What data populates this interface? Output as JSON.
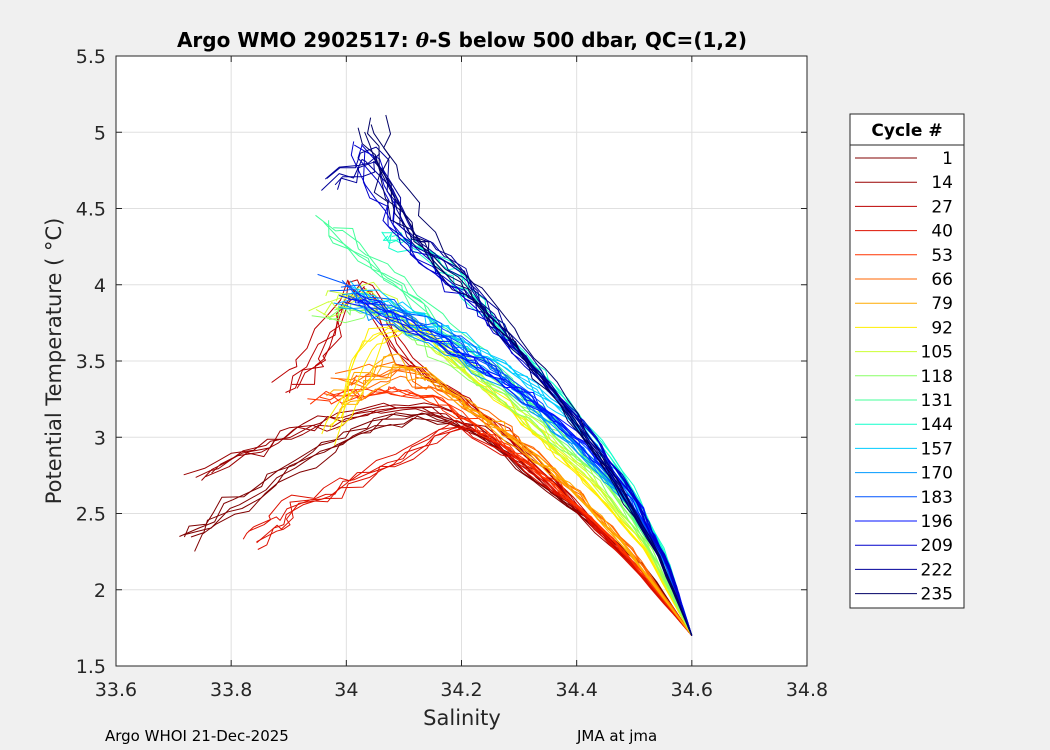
{
  "chart_data": {
    "type": "line",
    "title": "Argo WMO 2902517: θ-S below 500 dbar,  QC=(1,2)",
    "title_parts": {
      "prefix": "Argo WMO 2902517: ",
      "symbol": "θ",
      "suffix": "-S below 500 dbar,  QC=(1,2)"
    },
    "xlabel": "Salinity",
    "ylabel": "Potential Temperature ( °C)",
    "xlim": [
      33.6,
      34.8
    ],
    "ylim": [
      1.5,
      5.5
    ],
    "x_ticks": [
      33.6,
      33.8,
      34.0,
      34.2,
      34.4,
      34.6,
      34.8
    ],
    "x_tick_labels": [
      "33.6",
      "33.8",
      "34",
      "34.2",
      "34.4",
      "34.6",
      "34.8"
    ],
    "y_ticks": [
      1.5,
      2,
      2.5,
      3,
      3.5,
      4,
      4.5,
      5,
      5.5
    ],
    "y_tick_labels": [
      "1.5",
      "2",
      "2.5",
      "3",
      "3.5",
      "4",
      "4.5",
      "5",
      "5.5"
    ],
    "grid": true,
    "colormap": "jet (cycle 1 = dark red → cycle 235 = dark blue)",
    "legend": {
      "title": "Cycle #",
      "placement": "outside-right",
      "entries": [
        {
          "label": "1",
          "color": "#800000"
        },
        {
          "label": "14",
          "color": "#990000"
        },
        {
          "label": "27",
          "color": "#bb0000"
        },
        {
          "label": "40",
          "color": "#dd1100"
        },
        {
          "label": "53",
          "color": "#ff3300"
        },
        {
          "label": "66",
          "color": "#ff6600"
        },
        {
          "label": "79",
          "color": "#ffaa00"
        },
        {
          "label": "92",
          "color": "#ffee00"
        },
        {
          "label": "105",
          "color": "#ccff33"
        },
        {
          "label": "118",
          "color": "#88ff66"
        },
        {
          "label": "131",
          "color": "#44ff99"
        },
        {
          "label": "144",
          "color": "#11ffcc"
        },
        {
          "label": "157",
          "color": "#00ccff"
        },
        {
          "label": "170",
          "color": "#0099ff"
        },
        {
          "label": "183",
          "color": "#0055ff"
        },
        {
          "label": "196",
          "color": "#0011ff"
        },
        {
          "label": "209",
          "color": "#0000cc"
        },
        {
          "label": "222",
          "color": "#000099"
        },
        {
          "label": "235",
          "color": "#000066"
        }
      ]
    },
    "series": [
      {
        "name": "1",
        "color": "#800000",
        "x": [
          33.72,
          33.8,
          33.92,
          34.02,
          34.12,
          34.22,
          34.32,
          34.42,
          34.52,
          34.6
        ],
        "y": [
          2.32,
          2.55,
          2.85,
          3.05,
          3.15,
          3.05,
          2.75,
          2.45,
          2.15,
          1.7
        ]
      },
      {
        "name": "14",
        "color": "#990000",
        "x": [
          33.74,
          33.85,
          33.95,
          34.05,
          34.15,
          34.25,
          34.35,
          34.45,
          34.53,
          34.6
        ],
        "y": [
          2.75,
          2.95,
          3.1,
          3.2,
          3.2,
          3.0,
          2.7,
          2.35,
          2.05,
          1.7
        ]
      },
      {
        "name": "27",
        "color": "#bb0000",
        "x": [
          33.9,
          33.96,
          34.02,
          34.1,
          34.2,
          34.3,
          34.4,
          34.5,
          34.6
        ],
        "y": [
          3.3,
          3.6,
          4.05,
          3.5,
          3.25,
          2.95,
          2.55,
          2.15,
          1.7
        ]
      },
      {
        "name": "40",
        "color": "#dd1100",
        "x": [
          33.84,
          33.9,
          34.0,
          34.1,
          34.2,
          34.3,
          34.4,
          34.5,
          34.6
        ],
        "y": [
          2.35,
          2.55,
          2.7,
          2.9,
          3.1,
          2.85,
          2.55,
          2.15,
          1.7
        ]
      },
      {
        "name": "53",
        "color": "#ff3300",
        "x": [
          33.95,
          34.05,
          34.15,
          34.25,
          34.35,
          34.45,
          34.53,
          34.6
        ],
        "y": [
          3.3,
          3.35,
          3.3,
          3.05,
          2.75,
          2.4,
          2.05,
          1.7
        ]
      },
      {
        "name": "66",
        "color": "#ff6600",
        "x": [
          34.0,
          34.1,
          34.2,
          34.3,
          34.4,
          34.5,
          34.6
        ],
        "y": [
          3.4,
          3.45,
          3.25,
          3.0,
          2.65,
          2.25,
          1.7
        ]
      },
      {
        "name": "79",
        "color": "#ffaa00",
        "x": [
          33.98,
          34.08,
          34.18,
          34.28,
          34.38,
          34.48,
          34.6
        ],
        "y": [
          3.2,
          3.5,
          3.3,
          3.0,
          2.7,
          2.3,
          1.7
        ]
      },
      {
        "name": "92",
        "color": "#ffee00",
        "x": [
          33.98,
          34.04,
          34.12,
          34.22,
          34.32,
          34.42,
          34.52,
          34.6
        ],
        "y": [
          3.0,
          3.6,
          3.75,
          3.4,
          3.05,
          2.7,
          2.25,
          1.7
        ]
      },
      {
        "name": "105",
        "color": "#ccff33",
        "x": [
          33.96,
          34.04,
          34.12,
          34.22,
          34.32,
          34.42,
          34.52,
          34.6
        ],
        "y": [
          3.85,
          3.95,
          3.7,
          3.4,
          3.1,
          2.75,
          2.3,
          1.7
        ]
      },
      {
        "name": "118",
        "color": "#88ff66",
        "x": [
          33.96,
          34.05,
          34.15,
          34.25,
          34.35,
          34.45,
          34.53,
          34.6
        ],
        "y": [
          3.8,
          3.85,
          3.6,
          3.35,
          3.05,
          2.7,
          2.25,
          1.7
        ]
      },
      {
        "name": "131",
        "color": "#44ff99",
        "x": [
          33.96,
          34.06,
          34.16,
          34.26,
          34.36,
          34.46,
          34.54,
          34.6
        ],
        "y": [
          4.4,
          4.1,
          3.75,
          3.45,
          3.1,
          2.7,
          2.25,
          1.7
        ]
      },
      {
        "name": "144",
        "color": "#11ffcc",
        "x": [
          34.05,
          34.12,
          34.2,
          34.28,
          34.38,
          34.48,
          34.55,
          34.6
        ],
        "y": [
          4.3,
          4.2,
          3.95,
          3.6,
          3.2,
          2.75,
          2.25,
          1.7
        ]
      },
      {
        "name": "157",
        "color": "#00ccff",
        "x": [
          34.02,
          34.12,
          34.22,
          34.32,
          34.42,
          34.5,
          34.56,
          34.6
        ],
        "y": [
          3.95,
          3.8,
          3.6,
          3.35,
          3.0,
          2.6,
          2.15,
          1.7
        ]
      },
      {
        "name": "170",
        "color": "#0099ff",
        "x": [
          34.0,
          34.1,
          34.2,
          34.3,
          34.4,
          34.5,
          34.56,
          34.6
        ],
        "y": [
          3.9,
          3.8,
          3.55,
          3.3,
          2.95,
          2.55,
          2.15,
          1.7
        ]
      },
      {
        "name": "183",
        "color": "#0055ff",
        "x": [
          33.98,
          34.08,
          34.18,
          34.28,
          34.38,
          34.48,
          34.55,
          34.6
        ],
        "y": [
          4.0,
          3.85,
          3.65,
          3.4,
          3.05,
          2.65,
          2.2,
          1.7
        ]
      },
      {
        "name": "196",
        "color": "#0011ff",
        "x": [
          34.0,
          34.1,
          34.2,
          34.3,
          34.4,
          34.5,
          34.56,
          34.6
        ],
        "y": [
          3.95,
          3.75,
          3.55,
          3.3,
          3.0,
          2.6,
          2.15,
          1.7
        ]
      },
      {
        "name": "209",
        "color": "#0000cc",
        "x": [
          34.02,
          34.08,
          34.16,
          34.24,
          34.32,
          34.42,
          34.5,
          34.56,
          34.6
        ],
        "y": [
          4.9,
          4.4,
          4.05,
          3.8,
          3.45,
          3.05,
          2.6,
          2.15,
          1.7
        ]
      },
      {
        "name": "222",
        "color": "#000099",
        "x": [
          33.98,
          34.06,
          34.12,
          34.2,
          34.28,
          34.36,
          34.46,
          34.54,
          34.6
        ],
        "y": [
          4.65,
          4.85,
          4.3,
          4.1,
          3.7,
          3.3,
          2.8,
          2.25,
          1.7
        ]
      },
      {
        "name": "235",
        "color": "#000066",
        "x": [
          34.04,
          34.08,
          34.14,
          34.22,
          34.3,
          34.38,
          34.46,
          34.54,
          34.6
        ],
        "y": [
          5.1,
          4.6,
          4.25,
          3.95,
          3.6,
          3.2,
          2.75,
          2.25,
          1.7
        ]
      }
    ]
  },
  "footer": {
    "left": "Argo WHOI 21-Dec-2025",
    "right": "JMA at jma"
  }
}
